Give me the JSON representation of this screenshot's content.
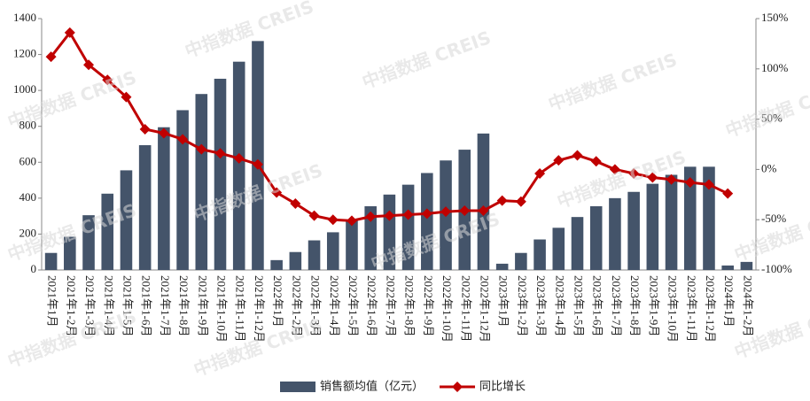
{
  "chart_data": {
    "type": "bar_line",
    "watermark": "中指数据 CREIS",
    "categories": [
      "2021年1月",
      "2021年1-2月",
      "2021年1-3月",
      "2021年1-4月",
      "2021年1-5月",
      "2021年1-6月",
      "2021年1-7月",
      "2021年1-8月",
      "2021年1-9月",
      "2021年1-10月",
      "2021年1-11月",
      "2021年1-12月",
      "2022年1月",
      "2022年1-2月",
      "2022年1-3月",
      "2022年1-4月",
      "2022年1-5月",
      "2022年1-6月",
      "2022年1-7月",
      "2022年1-8月",
      "2022年1-9月",
      "2022年1-10月",
      "2022年1-11月",
      "2022年1-12月",
      "2023年1月",
      "2023年1-2月",
      "2023年1-3月",
      "2023年1-4月",
      "2023年1-5月",
      "2023年1-6月",
      "2023年1-7月",
      "2023年1-8月",
      "2023年1-9月",
      "2023年1-10月",
      "2023年1-11月",
      "2023年1-12月",
      "2024年1月",
      "2024年1-2月"
    ],
    "series": [
      {
        "name": "销售额均值（亿元）",
        "color": "#44546a",
        "kind": "bar",
        "values": [
          95,
          185,
          305,
          425,
          555,
          695,
          795,
          890,
          980,
          1065,
          1160,
          1275,
          55,
          100,
          165,
          210,
          280,
          355,
          420,
          475,
          540,
          610,
          670,
          760,
          35,
          95,
          170,
          235,
          295,
          355,
          400,
          435,
          480,
          530,
          575,
          575,
          25,
          45
        ]
      },
      {
        "name": "同比增长",
        "color": "#c00000",
        "kind": "line",
        "axis": "y2",
        "values": [
          112,
          136,
          104,
          89,
          72,
          40,
          36,
          30,
          20,
          16,
          11,
          5,
          -23,
          -34,
          -46,
          -50,
          -51,
          -47,
          -46,
          -45,
          -44,
          -42,
          -41,
          -41,
          -31,
          -32,
          -4,
          9,
          14,
          8,
          0,
          -4,
          -8,
          -10,
          -13,
          -15,
          -24,
          null
        ]
      }
    ],
    "ylim": [
      0,
      1400
    ],
    "yticks": [
      0,
      200,
      400,
      600,
      800,
      1000,
      1200,
      1400
    ],
    "y2lim": [
      -100,
      150
    ],
    "y2ticks": [
      {
        "value": -100,
        "label": "-100%"
      },
      {
        "value": -50,
        "label": "-50%"
      },
      {
        "value": 0,
        "label": "0%"
      },
      {
        "value": 50,
        "label": "50%"
      },
      {
        "value": 100,
        "label": "100%"
      },
      {
        "value": 150,
        "label": "150%"
      }
    ],
    "legend": "bottom"
  }
}
